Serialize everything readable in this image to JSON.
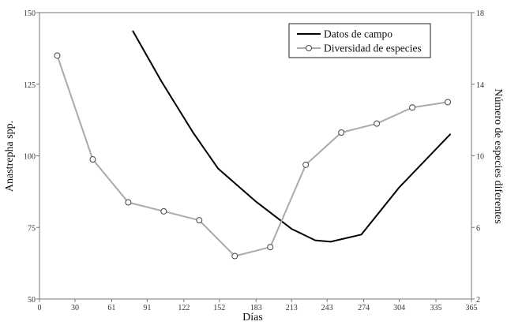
{
  "chart_data": {
    "type": "line",
    "xlabel": "Días",
    "ylabel_left": "Anastrepha spp.",
    "ylabel_right": "Número de especies diferentes",
    "x_ticks": [
      0,
      30,
      61,
      91,
      122,
      152,
      183,
      213,
      243,
      274,
      304,
      335,
      365
    ],
    "x_range": [
      0,
      365
    ],
    "y_left_ticks": [
      50,
      75,
      100,
      125,
      150
    ],
    "y_left_range": [
      50,
      150
    ],
    "y_right_ticks": [
      2,
      6,
      10,
      14,
      18
    ],
    "y_right_range": [
      2,
      18
    ],
    "grid": false,
    "legend_position": "top-right",
    "series": [
      {
        "name": "Datos de campo",
        "axis": "left",
        "color": "#000000",
        "markers": false,
        "x": [
          79,
          103,
          130,
          151,
          183,
          213,
          233,
          246,
          272,
          304,
          347
        ],
        "y": [
          143.5,
          126,
          108,
          95.5,
          84,
          74.5,
          70.5,
          70,
          72.5,
          89,
          107.5
        ]
      },
      {
        "name": "Diversidad de especies",
        "axis": "right",
        "color": "#aaaaaa",
        "markers": true,
        "x": [
          15,
          45,
          75,
          105,
          135,
          165,
          195,
          225,
          255,
          285,
          315,
          345
        ],
        "y": [
          15.6,
          9.8,
          7.4,
          6.9,
          6.4,
          4.4,
          4.9,
          9.5,
          11.3,
          11.8,
          12.7,
          13
        ]
      }
    ]
  }
}
